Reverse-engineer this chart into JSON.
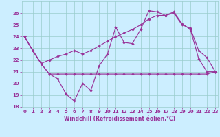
{
  "xlabel": "Windchill (Refroidissement éolien,°C)",
  "background_color": "#cceeff",
  "line_color": "#993399",
  "grid_color": "#99cccc",
  "xlim_min": -0.3,
  "xlim_max": 23.3,
  "ylim_min": 18,
  "ylim_max": 27,
  "xticks": [
    0,
    1,
    2,
    3,
    4,
    5,
    6,
    7,
    8,
    9,
    10,
    11,
    12,
    13,
    14,
    15,
    16,
    17,
    18,
    19,
    20,
    21,
    22,
    23
  ],
  "yticks": [
    18,
    19,
    20,
    21,
    22,
    23,
    24,
    25,
    26
  ],
  "hours": [
    0,
    1,
    2,
    3,
    4,
    5,
    6,
    7,
    8,
    9,
    10,
    11,
    12,
    13,
    14,
    15,
    16,
    17,
    18,
    19,
    20,
    21,
    22,
    23
  ],
  "line_jagged": [
    24.0,
    22.8,
    21.7,
    20.8,
    20.4,
    19.1,
    18.5,
    20.0,
    19.4,
    21.5,
    22.5,
    24.8,
    23.5,
    23.4,
    24.6,
    26.2,
    26.1,
    25.8,
    26.1,
    25.1,
    24.6,
    22.1,
    21.0,
    21.0
  ],
  "line_flat": [
    24.0,
    22.8,
    21.7,
    20.8,
    20.8,
    20.8,
    20.8,
    20.8,
    20.8,
    20.8,
    20.8,
    20.8,
    20.8,
    20.8,
    20.8,
    20.8,
    20.8,
    20.8,
    20.8,
    20.8,
    20.8,
    20.8,
    20.8,
    21.0
  ],
  "line_trend": [
    24.0,
    22.8,
    21.7,
    22.0,
    22.3,
    22.5,
    22.8,
    22.5,
    22.8,
    23.2,
    23.6,
    24.0,
    24.3,
    24.6,
    25.0,
    25.5,
    25.8,
    25.8,
    26.0,
    25.0,
    24.7,
    22.8,
    22.2,
    21.0
  ],
  "markersize": 2.2,
  "linewidth": 0.85,
  "tick_fontsize": 5.0,
  "xlabel_fontsize": 5.5
}
